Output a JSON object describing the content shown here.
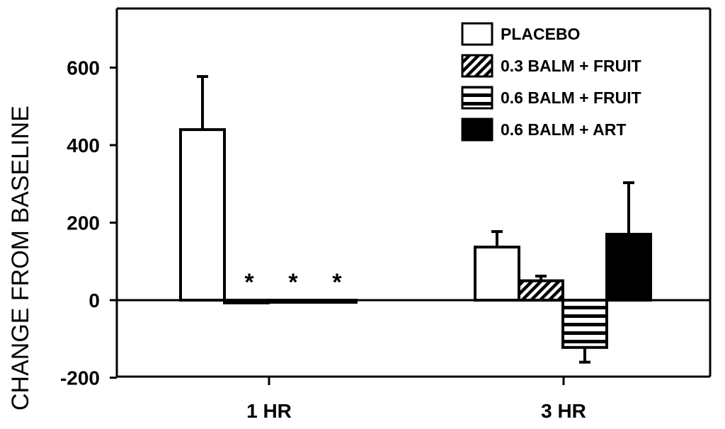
{
  "chart_data": {
    "type": "bar",
    "title": "",
    "xlabel": "",
    "ylabel": "CHANGE FROM BASELINE",
    "ylim": [
      -200,
      750
    ],
    "yticks": [
      -200,
      0,
      200,
      400,
      600
    ],
    "categories": [
      "1 HR",
      "3 HR"
    ],
    "series": [
      {
        "name": "PLACEBO",
        "fill": "hollow",
        "values": [
          440,
          137
        ],
        "error": [
          137,
          40
        ]
      },
      {
        "name": "0.3 BALM + FRUIT",
        "fill": "diagonal",
        "values": [
          -7,
          50
        ],
        "error": [
          0,
          12
        ]
      },
      {
        "name": "0.6 BALM + FRUIT",
        "fill": "horizontal",
        "values": [
          -4,
          -122
        ],
        "error": [
          0,
          38
        ]
      },
      {
        "name": "0.6 BALM + ART",
        "fill": "solid",
        "values": [
          -2,
          170
        ],
        "error": [
          0,
          133
        ]
      }
    ],
    "annotations": [
      {
        "text": "*",
        "category": "1 HR",
        "series": "0.3 BALM + FRUIT"
      },
      {
        "text": "*",
        "category": "1 HR",
        "series": "0.6 BALM + FRUIT"
      },
      {
        "text": "*",
        "category": "1 HR",
        "series": "0.6 BALM + ART"
      }
    ],
    "legend_position": "top-right",
    "colors": {
      "ink": "#000000",
      "background": "#ffffff"
    }
  }
}
